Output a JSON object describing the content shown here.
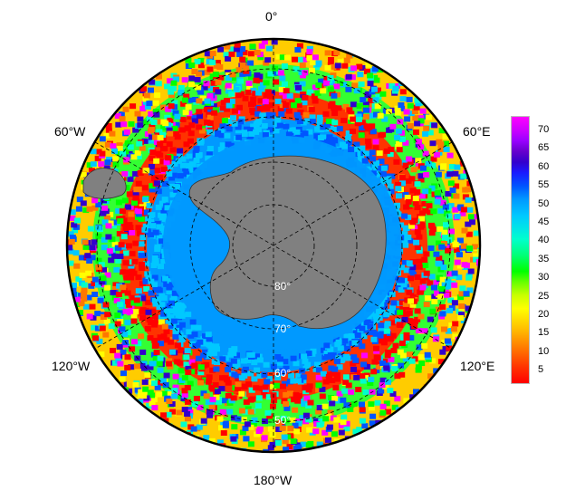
{
  "map": {
    "projection": "south-polar-stereographic",
    "longitude_labels": {
      "top": "0°",
      "upper_left": "60°W",
      "upper_right": "60°E",
      "lower_left": "120°W",
      "lower_right": "120°E",
      "bottom": "180°W"
    },
    "latitude_labels": [
      "80°",
      "70°",
      "60°",
      "50°"
    ],
    "land_color": "#808080",
    "gridline_style": "dashed"
  },
  "colorbar": {
    "ticks": [
      "70",
      "65",
      "60",
      "55",
      "50",
      "45",
      "40",
      "35",
      "30",
      "25",
      "20",
      "15",
      "10",
      "5"
    ],
    "range": [
      0,
      73
    ],
    "palette": [
      "#ff0000",
      "#ff7700",
      "#ffff00",
      "#00ff00",
      "#00ffcc",
      "#00c8ff",
      "#0055ff",
      "#3300cc",
      "#ff00ff"
    ]
  }
}
